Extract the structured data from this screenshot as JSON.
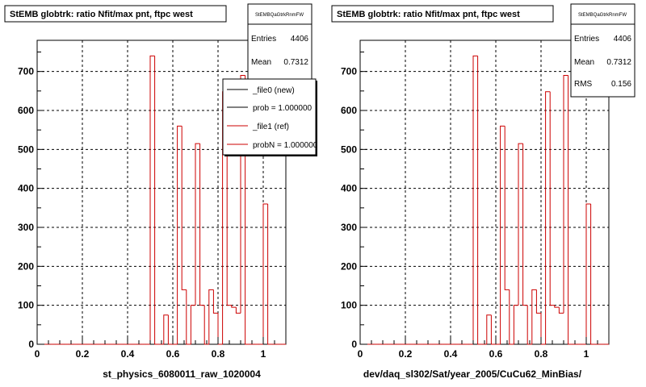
{
  "chart_data": [
    {
      "type": "histogram",
      "title": "StEMB globtrk: ratio Nfit/max pnt, ftpc west",
      "xlabel": "st_physics_6080011_raw_1020004",
      "ylabel": "",
      "xlim": [
        0,
        1.1
      ],
      "ylim": [
        0,
        780
      ],
      "x_ticks": [
        "0",
        "0.2",
        "0.4",
        "0.6",
        "0.8",
        "1"
      ],
      "y_ticks": [
        "0",
        "100",
        "200",
        "300",
        "400",
        "500",
        "600",
        "700"
      ],
      "grid": true,
      "series": [
        {
          "name": "_file1 (ref)",
          "color": "#cc0000",
          "bin_width": 0.02,
          "x": [
            0.0,
            0.02,
            0.04,
            0.06,
            0.08,
            0.1,
            0.12,
            0.14,
            0.16,
            0.18,
            0.2,
            0.22,
            0.24,
            0.26,
            0.28,
            0.3,
            0.32,
            0.34,
            0.36,
            0.38,
            0.4,
            0.42,
            0.44,
            0.46,
            0.48,
            0.5,
            0.52,
            0.54,
            0.56,
            0.58,
            0.6,
            0.62,
            0.64,
            0.66,
            0.68,
            0.7,
            0.72,
            0.74,
            0.76,
            0.78,
            0.8,
            0.82,
            0.84,
            0.86,
            0.88,
            0.9,
            0.92,
            0.94,
            0.96,
            0.98,
            1.0,
            1.02,
            1.04,
            1.06,
            1.08
          ],
          "values": [
            0,
            0,
            0,
            0,
            0,
            0,
            0,
            0,
            0,
            0,
            0,
            0,
            0,
            0,
            0,
            0,
            0,
            0,
            0,
            0,
            0,
            0,
            0,
            0,
            0,
            740,
            0,
            0,
            75,
            0,
            0,
            560,
            140,
            0,
            100,
            515,
            100,
            0,
            140,
            80,
            0,
            648,
            100,
            95,
            80,
            690,
            0,
            0,
            0,
            0,
            360,
            0,
            0,
            0,
            0
          ]
        }
      ],
      "stats_box": {
        "name": "StEMBQaGtrkRnmFW",
        "entries_label": "Entries",
        "entries_value": "4406",
        "mean_label": "Mean",
        "mean_value": "0.7312"
      },
      "legend": {
        "position": "top-right",
        "entries": [
          {
            "label": "_file0 (new)",
            "color": "#000000"
          },
          {
            "label": "prob = 1.000000",
            "color": "#000000"
          },
          {
            "label": "_file1 (ref)",
            "color": "#cc0000"
          },
          {
            "label": "probN = 1.000000",
            "color": "#cc0000"
          }
        ]
      }
    },
    {
      "type": "histogram",
      "title": "StEMB globtrk: ratio Nfit/max pnt, ftpc west",
      "xlabel": "dev/daq_sl302/Sat/year_2005/CuCu62_MinBias/",
      "ylabel": "",
      "xlim": [
        0,
        1.1
      ],
      "ylim": [
        0,
        780
      ],
      "x_ticks": [
        "0",
        "0.2",
        "0.4",
        "0.6",
        "0.8",
        "1"
      ],
      "y_ticks": [
        "0",
        "100",
        "200",
        "300",
        "400",
        "500",
        "600",
        "700"
      ],
      "grid": true,
      "series": [
        {
          "name": "",
          "color": "#cc0000",
          "bin_width": 0.02,
          "x": [
            0.0,
            0.02,
            0.04,
            0.06,
            0.08,
            0.1,
            0.12,
            0.14,
            0.16,
            0.18,
            0.2,
            0.22,
            0.24,
            0.26,
            0.28,
            0.3,
            0.32,
            0.34,
            0.36,
            0.38,
            0.4,
            0.42,
            0.44,
            0.46,
            0.48,
            0.5,
            0.52,
            0.54,
            0.56,
            0.58,
            0.6,
            0.62,
            0.64,
            0.66,
            0.68,
            0.7,
            0.72,
            0.74,
            0.76,
            0.78,
            0.8,
            0.82,
            0.84,
            0.86,
            0.88,
            0.9,
            0.92,
            0.94,
            0.96,
            0.98,
            1.0,
            1.02,
            1.04,
            1.06,
            1.08
          ],
          "values": [
            0,
            0,
            0,
            0,
            0,
            0,
            0,
            0,
            0,
            0,
            0,
            0,
            0,
            0,
            0,
            0,
            0,
            0,
            0,
            0,
            0,
            0,
            0,
            0,
            0,
            740,
            0,
            0,
            75,
            0,
            0,
            560,
            140,
            0,
            100,
            515,
            100,
            0,
            140,
            80,
            0,
            648,
            100,
            95,
            80,
            690,
            0,
            0,
            0,
            0,
            360,
            0,
            0,
            0,
            0
          ]
        }
      ],
      "stats_box": {
        "name": "StEMBQaGtrkRnmFW",
        "entries_label": "Entries",
        "entries_value": "4406",
        "mean_label": "Mean",
        "mean_value": "0.7312",
        "rms_label": "RMS",
        "rms_value": "0.156"
      }
    }
  ]
}
